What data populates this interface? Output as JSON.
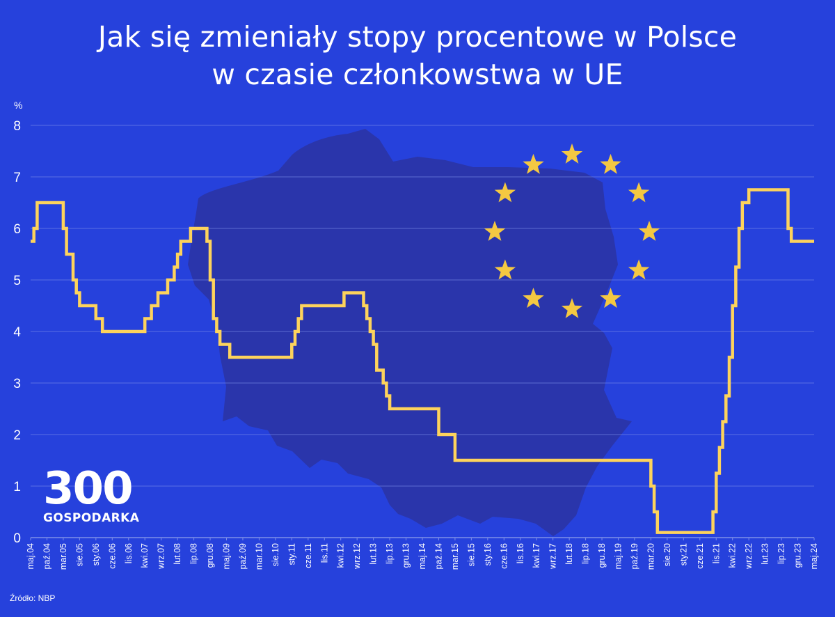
{
  "title_lines": [
    "Jak się zmieniały stopy procentowe w Polsce",
    "w czasie członkowstwa w UE"
  ],
  "source": "Źródło: NBP",
  "logo": {
    "number": "300",
    "name": "GOSPODARKA"
  },
  "colors": {
    "background": "#2641DC",
    "line": "#FDD35C",
    "map": "#2A35A8",
    "stars": "#F4C842",
    "grid": "#7E8FE8"
  },
  "chart_data": {
    "type": "line",
    "step": true,
    "ylabel": "%",
    "ylim": [
      0,
      8
    ],
    "yticks": [
      "0",
      "1",
      "2",
      "3",
      "4",
      "5",
      "6",
      "7",
      "8"
    ],
    "grid": "horizontal",
    "xlim": [
      "2004-05",
      "2024-05"
    ],
    "xtick_labels": [
      "maj.04",
      "paź.04",
      "mar.05",
      "sie.05",
      "sty.06",
      "cze.06",
      "lis.06",
      "kwi.07",
      "wrz.07",
      "lut.08",
      "lip.08",
      "gru.08",
      "maj.09",
      "paź.09",
      "mar.10",
      "sie.10",
      "sty.11",
      "cze.11",
      "lis.11",
      "kwi.12",
      "wrz.12",
      "lut.13",
      "lip.13",
      "gru.13",
      "maj.14",
      "paź.14",
      "mar.15",
      "sie.15",
      "sty.16",
      "cze.16",
      "lis.16",
      "kwi.17",
      "wrz.17",
      "lut.18",
      "lip.18",
      "gru.18",
      "maj.19",
      "paź.19",
      "mar.20",
      "sie.20",
      "sty.21",
      "cze.21",
      "lis.21",
      "kwi.22",
      "wrz.22",
      "lut.23",
      "lip.23",
      "gru.23",
      "maj.24"
    ],
    "series": [
      {
        "points": [
          [
            "2004-05",
            5.75
          ],
          [
            "2004-06",
            6.0
          ],
          [
            "2004-07",
            6.5
          ],
          [
            "2004-09",
            6.5
          ],
          [
            "2005-03",
            6.0
          ],
          [
            "2005-04",
            5.5
          ],
          [
            "2005-05",
            5.5
          ],
          [
            "2005-06",
            5.0
          ],
          [
            "2005-07",
            4.75
          ],
          [
            "2005-08",
            4.5
          ],
          [
            "2006-01",
            4.25
          ],
          [
            "2006-03",
            4.0
          ],
          [
            "2007-04",
            4.25
          ],
          [
            "2007-06",
            4.5
          ],
          [
            "2007-08",
            4.75
          ],
          [
            "2007-11",
            5.0
          ],
          [
            "2008-01",
            5.25
          ],
          [
            "2008-02",
            5.5
          ],
          [
            "2008-03",
            5.75
          ],
          [
            "2008-06",
            6.0
          ],
          [
            "2008-11",
            5.75
          ],
          [
            "2008-12",
            5.0
          ],
          [
            "2009-01",
            4.25
          ],
          [
            "2009-02",
            4.0
          ],
          [
            "2009-03",
            3.75
          ],
          [
            "2009-06",
            3.5
          ],
          [
            "2011-01",
            3.75
          ],
          [
            "2011-02",
            4.0
          ],
          [
            "2011-03",
            4.25
          ],
          [
            "2011-04",
            4.5
          ],
          [
            "2012-05",
            4.75
          ],
          [
            "2012-11",
            4.5
          ],
          [
            "2012-12",
            4.25
          ],
          [
            "2013-01",
            4.0
          ],
          [
            "2013-02",
            3.75
          ],
          [
            "2013-03",
            3.25
          ],
          [
            "2013-05",
            3.0
          ],
          [
            "2013-06",
            2.75
          ],
          [
            "2013-07",
            2.5
          ],
          [
            "2014-10",
            2.0
          ],
          [
            "2015-03",
            1.5
          ],
          [
            "2020-03",
            1.0
          ],
          [
            "2020-04",
            0.5
          ],
          [
            "2020-05",
            0.1
          ],
          [
            "2021-10",
            0.5
          ],
          [
            "2021-11",
            1.25
          ],
          [
            "2021-12",
            1.75
          ],
          [
            "2022-01",
            2.25
          ],
          [
            "2022-02",
            2.75
          ],
          [
            "2022-03",
            3.5
          ],
          [
            "2022-04",
            4.5
          ],
          [
            "2022-05",
            5.25
          ],
          [
            "2022-06",
            6.0
          ],
          [
            "2022-07",
            6.5
          ],
          [
            "2022-09",
            6.75
          ],
          [
            "2023-09",
            6.0
          ],
          [
            "2023-10",
            5.75
          ],
          [
            "2024-05",
            5.75
          ]
        ]
      }
    ]
  }
}
